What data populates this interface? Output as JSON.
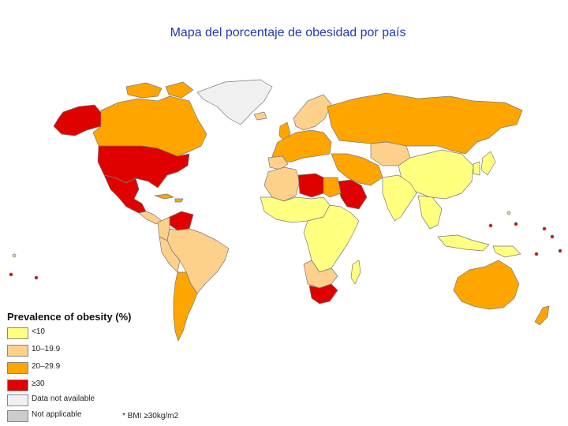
{
  "title": "Mapa del porcentaje de obesidad por país",
  "legend": {
    "title": "Prevalence of obesity (%)",
    "items": [
      {
        "label": "<10",
        "color": "#ffff80"
      },
      {
        "label": "10–19.9",
        "color": "#fdd08c"
      },
      {
        "label": "20–29.9",
        "color": "#ffa500"
      },
      {
        "label": "≥30",
        "color": "#e00000"
      },
      {
        "label": "Data not available",
        "color": "#f0f0f0"
      },
      {
        "label": "Not applicable",
        "color": "#cccccc"
      }
    ]
  },
  "note": "* BMI ≥30kg/m2",
  "colors": {
    "under10": "#ffff80",
    "10to19": "#fdd08c",
    "20to29": "#ffa500",
    "over30": "#e00000",
    "na_data": "#f0f0f0",
    "not_applicable": "#cccccc",
    "border": "#7a7a7a"
  }
}
